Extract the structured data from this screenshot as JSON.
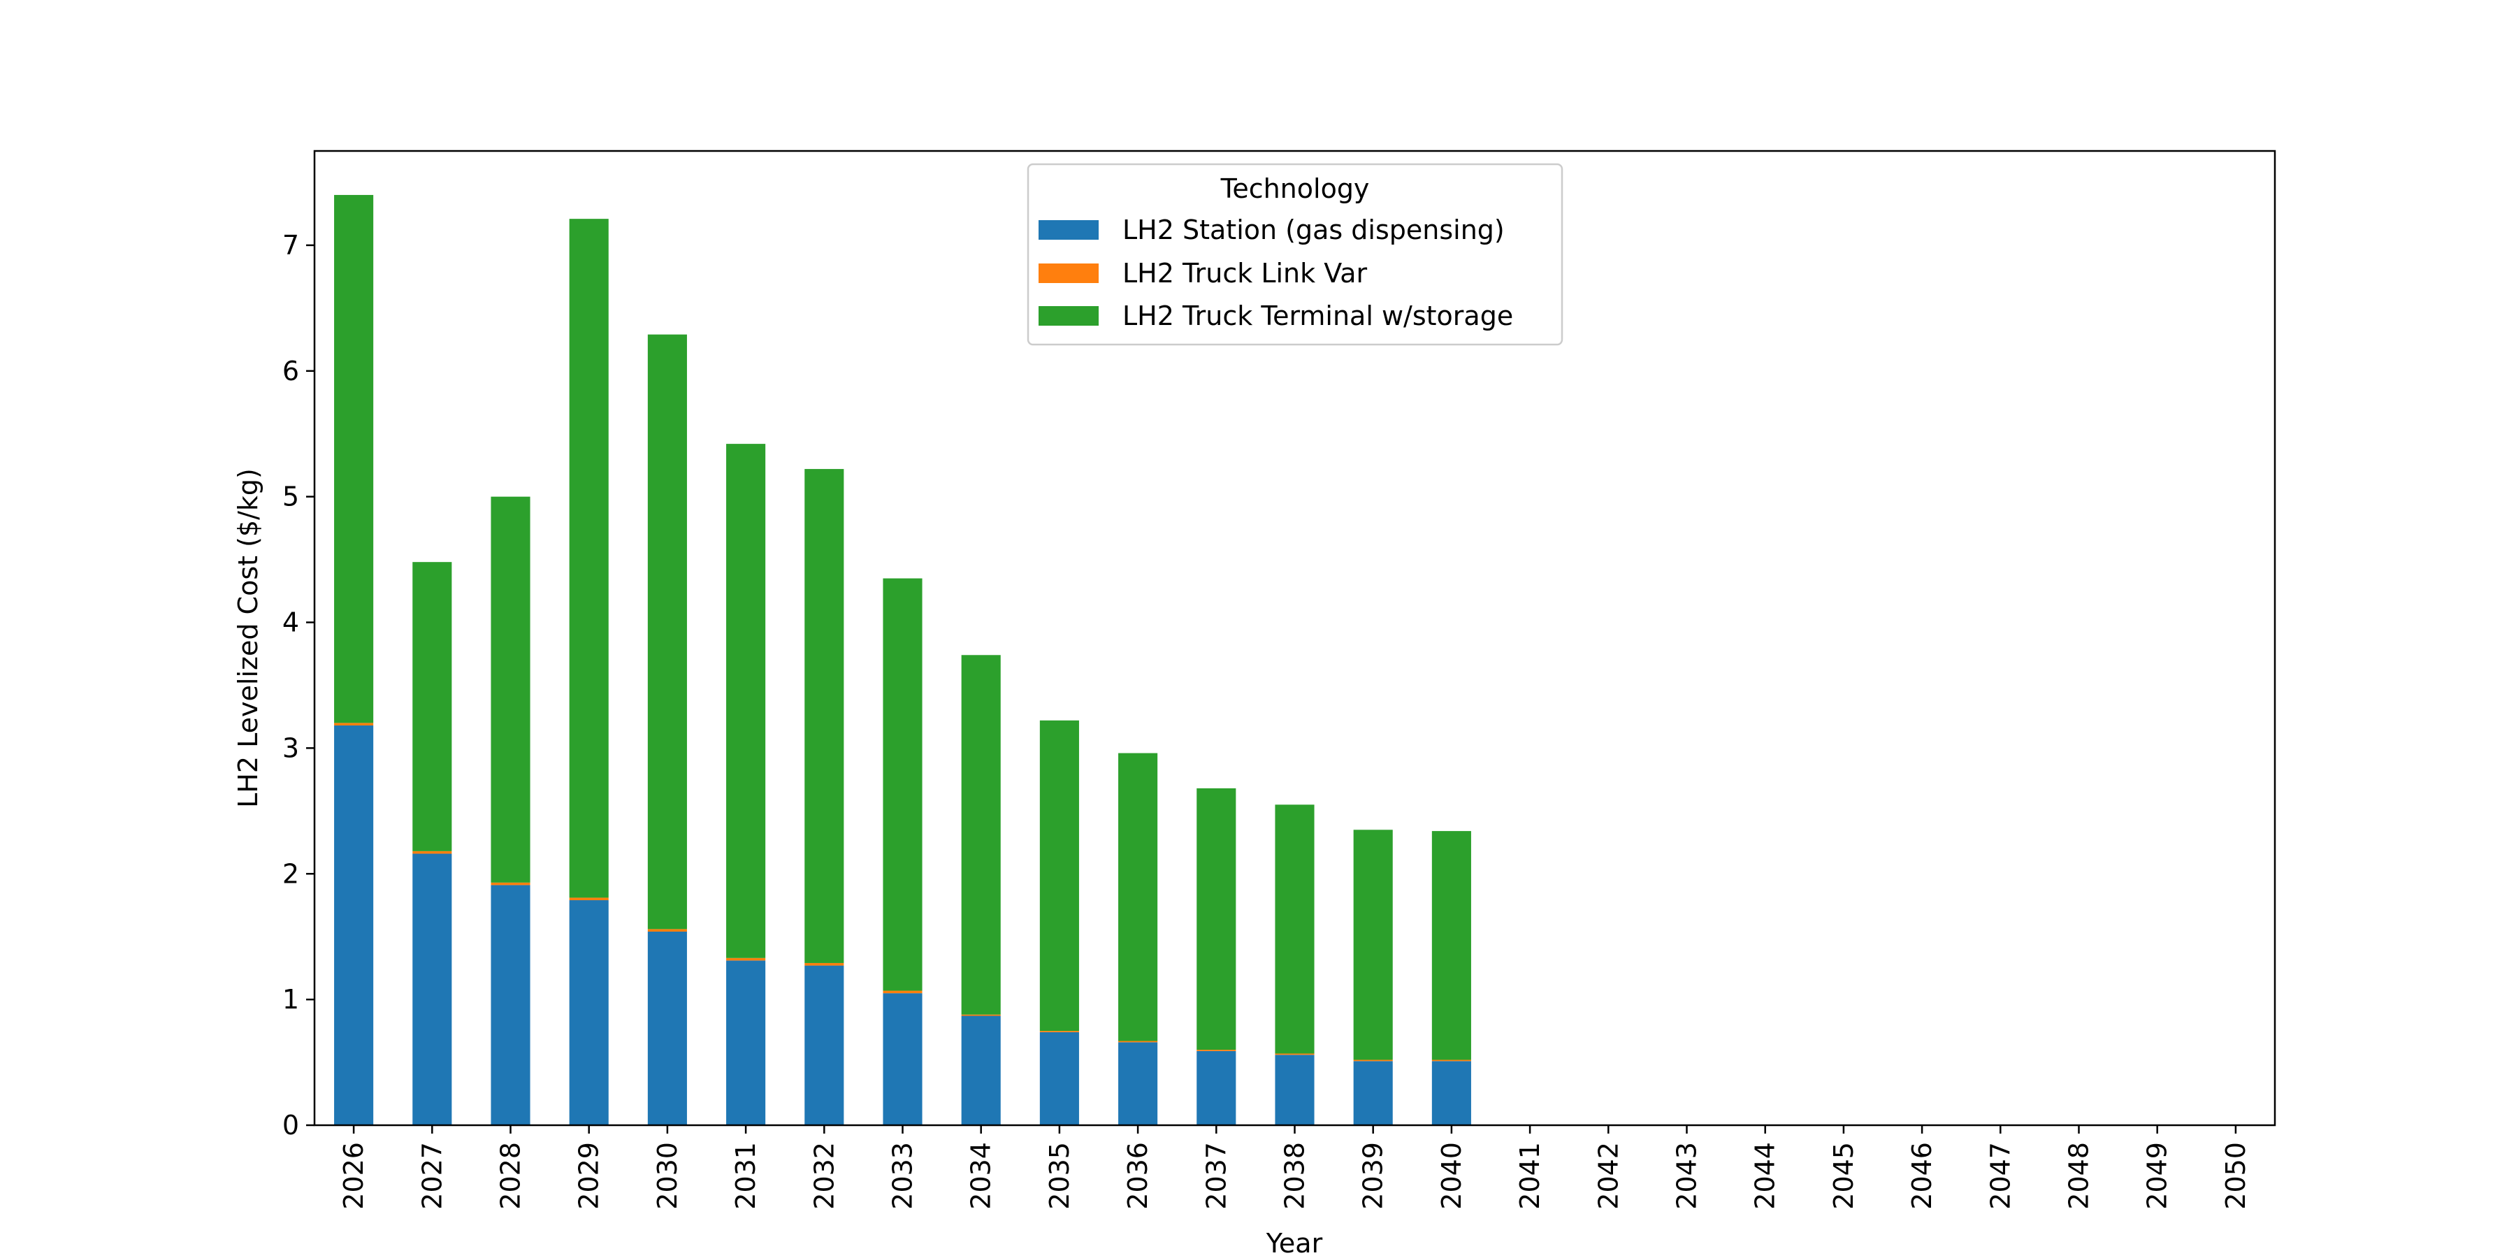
{
  "chart_data": {
    "type": "bar",
    "stacked": true,
    "title": "",
    "xlabel": "Year",
    "ylabel": "LH2 Levelized Cost ($/kg)",
    "ylim": [
      0,
      7.75
    ],
    "yticks": [
      0,
      1,
      2,
      3,
      4,
      5,
      6,
      7
    ],
    "grid": false,
    "categories": [
      "2026",
      "2027",
      "2028",
      "2029",
      "2030",
      "2031",
      "2032",
      "2033",
      "2034",
      "2035",
      "2036",
      "2037",
      "2038",
      "2039",
      "2040",
      "2041",
      "2042",
      "2043",
      "2044",
      "2045",
      "2046",
      "2047",
      "2048",
      "2049",
      "2050"
    ],
    "legend": {
      "title": "Technology",
      "placement": "top-center"
    },
    "series": [
      {
        "name": "LH2 Station (gas dispensing)",
        "color": "#1f77b4",
        "values": [
          3.18,
          2.16,
          1.91,
          1.79,
          1.54,
          1.31,
          1.27,
          1.05,
          0.87,
          0.74,
          0.66,
          0.59,
          0.56,
          0.51,
          0.51,
          0,
          0,
          0,
          0,
          0,
          0,
          0,
          0,
          0,
          0
        ]
      },
      {
        "name": "LH2 Truck Link Var",
        "color": "#ff7f0e",
        "values": [
          0.02,
          0.02,
          0.02,
          0.02,
          0.02,
          0.02,
          0.02,
          0.02,
          0.01,
          0.01,
          0.01,
          0.01,
          0.01,
          0.01,
          0.01,
          0,
          0,
          0,
          0,
          0,
          0,
          0,
          0,
          0,
          0
        ]
      },
      {
        "name": "LH2 Truck Terminal w/storage",
        "color": "#2ca02c",
        "values": [
          4.2,
          2.3,
          3.07,
          5.4,
          4.73,
          4.09,
          3.93,
          3.28,
          2.86,
          2.47,
          2.29,
          2.08,
          1.98,
          1.83,
          1.82,
          0,
          0,
          0,
          0,
          0,
          0,
          0,
          0,
          0,
          0
        ]
      }
    ]
  }
}
